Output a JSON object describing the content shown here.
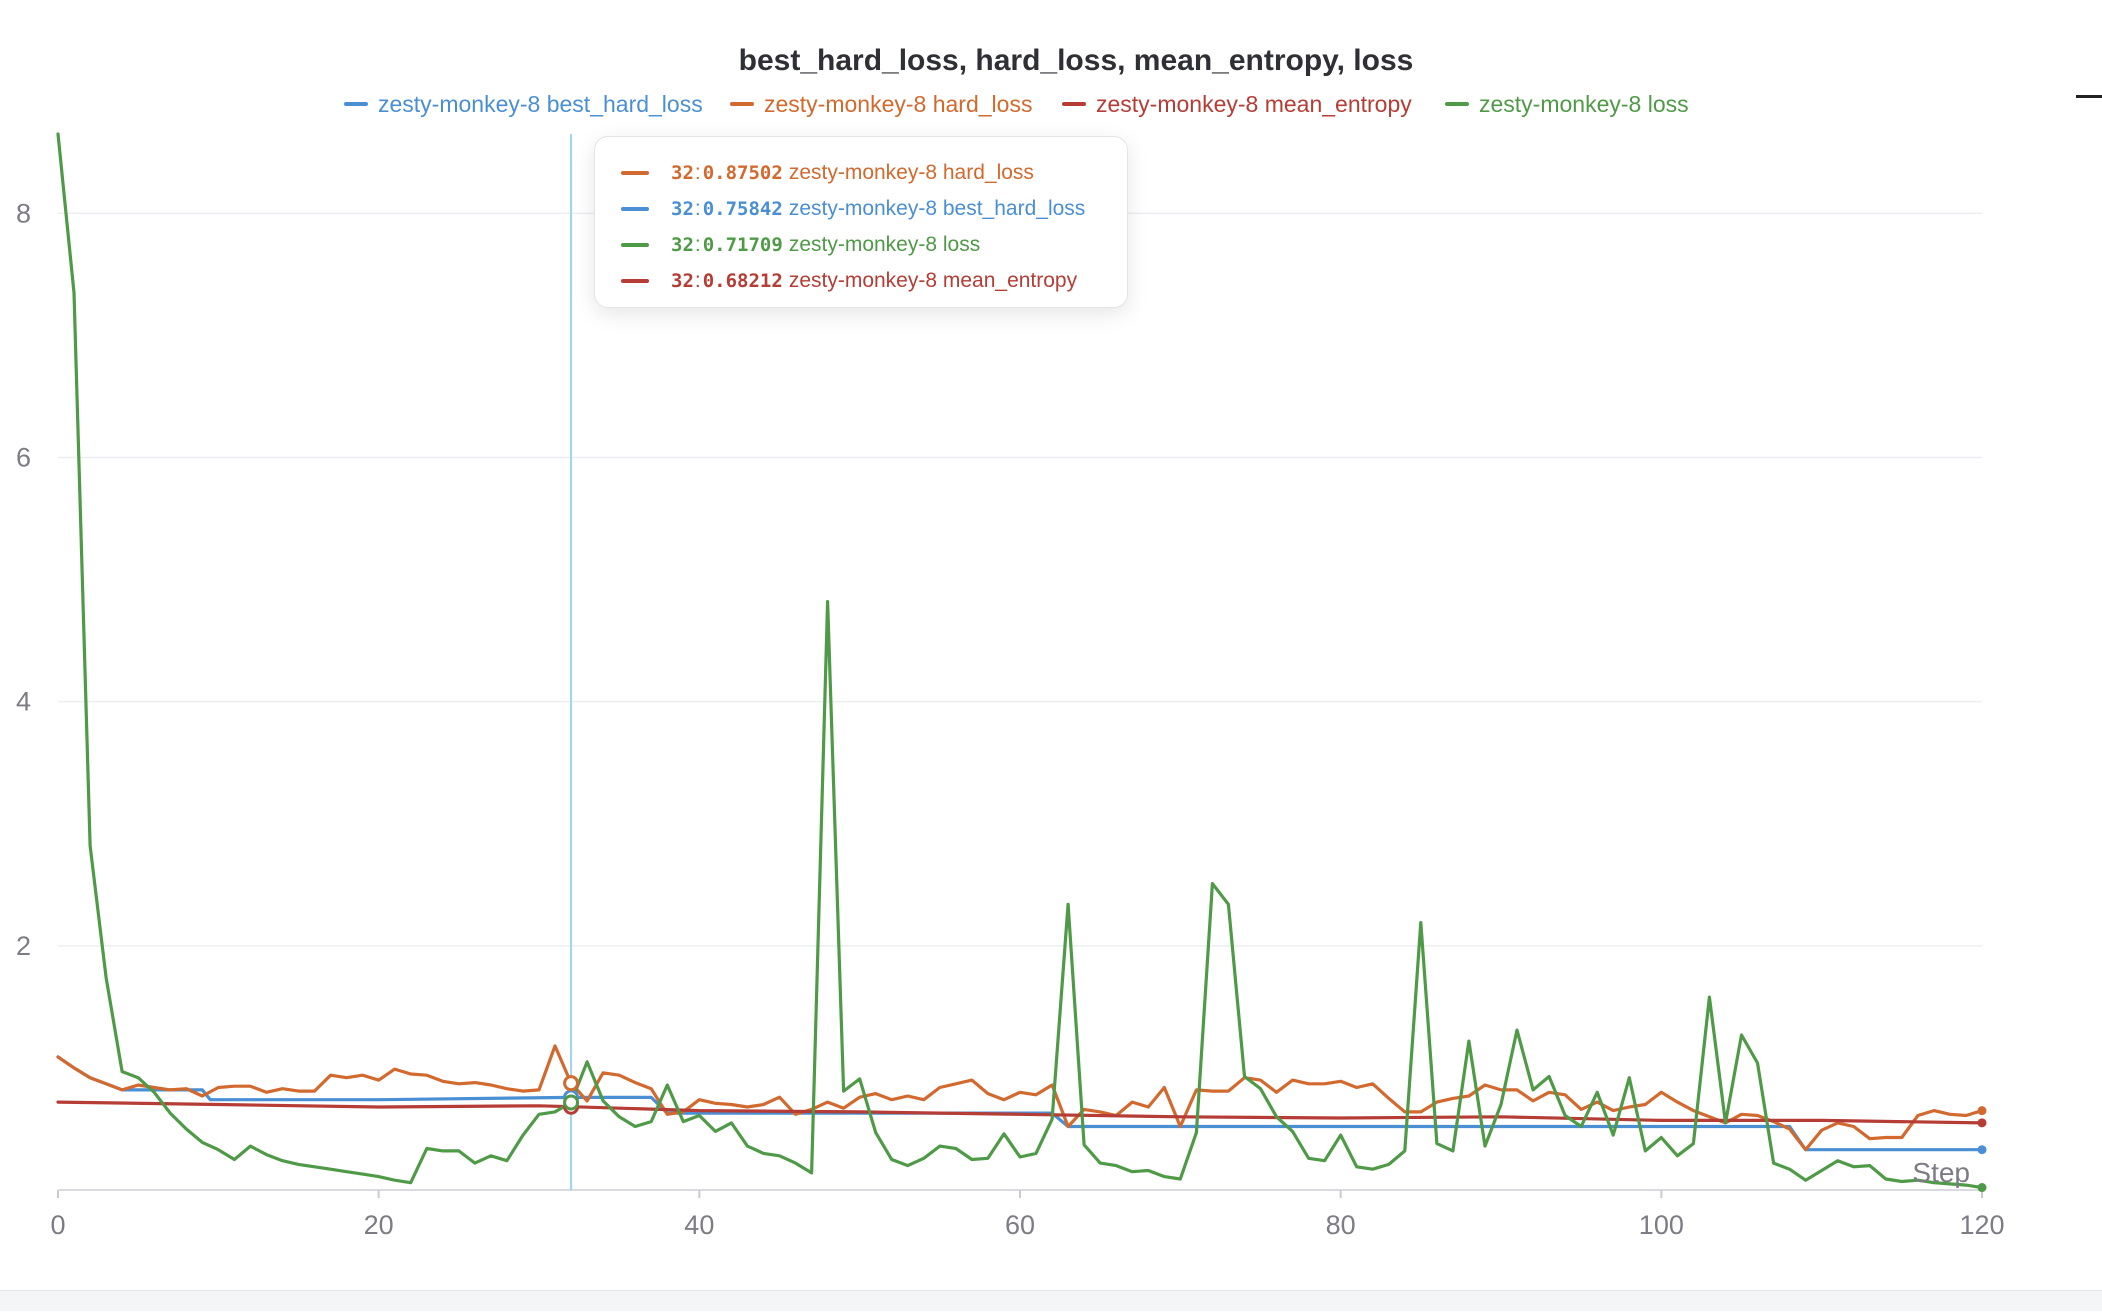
{
  "chart_data": {
    "type": "line",
    "title": "best_hard_loss, hard_loss, mean_entropy, loss",
    "xlabel": "Step",
    "ylabel": "",
    "xlim": [
      0,
      120
    ],
    "ylim": [
      0,
      8.65
    ],
    "x_ticks": [
      0,
      20,
      40,
      60,
      80,
      100,
      120
    ],
    "y_ticks": [
      2,
      4,
      6,
      8
    ],
    "grid": true,
    "legend_position": "top",
    "hover_step": 32,
    "series": [
      {
        "name": "zesty-monkey-8 best_hard_loss",
        "color": "#4a8fd4",
        "points": [
          [
            0,
            1.09
          ],
          [
            1,
            1.0
          ],
          [
            2,
            0.92
          ],
          [
            3,
            0.87
          ],
          [
            4,
            0.82
          ],
          [
            9,
            0.82
          ],
          [
            9.5,
            0.74
          ],
          [
            20,
            0.74
          ],
          [
            32,
            0.75842
          ],
          [
            37,
            0.75842
          ],
          [
            38,
            0.63
          ],
          [
            62,
            0.63
          ],
          [
            63,
            0.52
          ],
          [
            108,
            0.52
          ],
          [
            109,
            0.33
          ],
          [
            120,
            0.33
          ]
        ]
      },
      {
        "name": "zesty-monkey-8 hard_loss",
        "color": "#d2692e",
        "points": [
          [
            0,
            1.09
          ],
          [
            1,
            1.0
          ],
          [
            2,
            0.92
          ],
          [
            3,
            0.87
          ],
          [
            4,
            0.82
          ],
          [
            5,
            0.86
          ],
          [
            6,
            0.84
          ],
          [
            7,
            0.82
          ],
          [
            8,
            0.83
          ],
          [
            9,
            0.77
          ],
          [
            10,
            0.84
          ],
          [
            11,
            0.85
          ],
          [
            12,
            0.85
          ],
          [
            13,
            0.8
          ],
          [
            14,
            0.83
          ],
          [
            15,
            0.81
          ],
          [
            16,
            0.81
          ],
          [
            17,
            0.94
          ],
          [
            18,
            0.92
          ],
          [
            19,
            0.94
          ],
          [
            20,
            0.9
          ],
          [
            21,
            0.99
          ],
          [
            22,
            0.95
          ],
          [
            23,
            0.94
          ],
          [
            24,
            0.89
          ],
          [
            25,
            0.87
          ],
          [
            26,
            0.88
          ],
          [
            27,
            0.86
          ],
          [
            28,
            0.83
          ],
          [
            29,
            0.81
          ],
          [
            30,
            0.82
          ],
          [
            31,
            1.18
          ],
          [
            32,
            0.87502
          ],
          [
            33,
            0.73
          ],
          [
            34,
            0.96
          ],
          [
            35,
            0.94
          ],
          [
            36,
            0.88
          ],
          [
            37,
            0.83
          ],
          [
            38,
            0.62
          ],
          [
            39,
            0.64
          ],
          [
            40,
            0.74
          ],
          [
            41,
            0.71
          ],
          [
            42,
            0.7
          ],
          [
            43,
            0.68
          ],
          [
            44,
            0.7
          ],
          [
            45,
            0.76
          ],
          [
            46,
            0.62
          ],
          [
            47,
            0.66
          ],
          [
            48,
            0.72
          ],
          [
            49,
            0.67
          ],
          [
            50,
            0.76
          ],
          [
            51,
            0.79
          ],
          [
            52,
            0.74
          ],
          [
            53,
            0.77
          ],
          [
            54,
            0.74
          ],
          [
            55,
            0.84
          ],
          [
            56,
            0.87
          ],
          [
            57,
            0.9
          ],
          [
            58,
            0.79
          ],
          [
            59,
            0.74
          ],
          [
            60,
            0.8
          ],
          [
            61,
            0.78
          ],
          [
            62,
            0.86
          ],
          [
            63,
            0.52
          ],
          [
            64,
            0.66
          ],
          [
            65,
            0.64
          ],
          [
            66,
            0.61
          ],
          [
            67,
            0.72
          ],
          [
            68,
            0.68
          ],
          [
            69,
            0.84
          ],
          [
            70,
            0.52
          ],
          [
            71,
            0.82
          ],
          [
            72,
            0.81
          ],
          [
            73,
            0.81
          ],
          [
            74,
            0.92
          ],
          [
            75,
            0.9
          ],
          [
            76,
            0.8
          ],
          [
            77,
            0.9
          ],
          [
            78,
            0.87
          ],
          [
            79,
            0.87
          ],
          [
            80,
            0.89
          ],
          [
            81,
            0.84
          ],
          [
            82,
            0.87
          ],
          [
            83,
            0.75
          ],
          [
            84,
            0.64
          ],
          [
            85,
            0.64
          ],
          [
            86,
            0.72
          ],
          [
            87,
            0.75
          ],
          [
            88,
            0.77
          ],
          [
            89,
            0.86
          ],
          [
            90,
            0.82
          ],
          [
            91,
            0.82
          ],
          [
            92,
            0.73
          ],
          [
            93,
            0.8
          ],
          [
            94,
            0.78
          ],
          [
            95,
            0.66
          ],
          [
            96,
            0.72
          ],
          [
            97,
            0.65
          ],
          [
            98,
            0.68
          ],
          [
            99,
            0.7
          ],
          [
            100,
            0.8
          ],
          [
            101,
            0.72
          ],
          [
            102,
            0.65
          ],
          [
            103,
            0.6
          ],
          [
            104,
            0.55
          ],
          [
            105,
            0.62
          ],
          [
            106,
            0.61
          ],
          [
            107,
            0.56
          ],
          [
            108,
            0.5
          ],
          [
            109,
            0.33
          ],
          [
            110,
            0.49
          ],
          [
            111,
            0.55
          ],
          [
            112,
            0.52
          ],
          [
            113,
            0.42
          ],
          [
            114,
            0.43
          ],
          [
            115,
            0.43
          ],
          [
            116,
            0.61
          ],
          [
            117,
            0.65
          ],
          [
            118,
            0.62
          ],
          [
            119,
            0.61
          ],
          [
            120,
            0.65
          ]
        ]
      },
      {
        "name": "zesty-monkey-8 mean_entropy",
        "color": "#b53d35",
        "points": [
          [
            0,
            0.72
          ],
          [
            10,
            0.7
          ],
          [
            20,
            0.68
          ],
          [
            30,
            0.69
          ],
          [
            32,
            0.68212
          ],
          [
            40,
            0.65
          ],
          [
            50,
            0.64
          ],
          [
            60,
            0.62
          ],
          [
            70,
            0.6
          ],
          [
            80,
            0.59
          ],
          [
            90,
            0.6
          ],
          [
            100,
            0.57
          ],
          [
            110,
            0.57
          ],
          [
            120,
            0.55
          ]
        ]
      },
      {
        "name": "zesty-monkey-8 loss",
        "color": "#4f9a47",
        "points": [
          [
            0,
            8.65
          ],
          [
            1,
            7.35
          ],
          [
            2,
            2.82
          ],
          [
            3,
            1.74
          ],
          [
            4,
            0.97
          ],
          [
            5,
            0.92
          ],
          [
            6,
            0.8
          ],
          [
            7,
            0.63
          ],
          [
            8,
            0.5
          ],
          [
            9,
            0.39
          ],
          [
            10,
            0.33
          ],
          [
            11,
            0.25
          ],
          [
            12,
            0.36
          ],
          [
            13,
            0.29
          ],
          [
            14,
            0.24
          ],
          [
            15,
            0.21
          ],
          [
            16,
            0.19
          ],
          [
            17,
            0.17
          ],
          [
            18,
            0.15
          ],
          [
            19,
            0.13
          ],
          [
            20,
            0.11
          ],
          [
            21,
            0.08
          ],
          [
            22,
            0.06
          ],
          [
            23,
            0.34
          ],
          [
            24,
            0.32
          ],
          [
            25,
            0.32
          ],
          [
            26,
            0.22
          ],
          [
            27,
            0.28
          ],
          [
            28,
            0.24
          ],
          [
            29,
            0.45
          ],
          [
            30,
            0.62
          ],
          [
            31,
            0.64
          ],
          [
            32,
            0.71709
          ],
          [
            33,
            1.05
          ],
          [
            34,
            0.73
          ],
          [
            35,
            0.6
          ],
          [
            36,
            0.52
          ],
          [
            37,
            0.56
          ],
          [
            38,
            0.86
          ],
          [
            39,
            0.56
          ],
          [
            40,
            0.61
          ],
          [
            41,
            0.48
          ],
          [
            42,
            0.55
          ],
          [
            43,
            0.36
          ],
          [
            44,
            0.3
          ],
          [
            45,
            0.28
          ],
          [
            46,
            0.22
          ],
          [
            47,
            0.14
          ],
          [
            48,
            4.82
          ],
          [
            49,
            0.81
          ],
          [
            50,
            0.91
          ],
          [
            51,
            0.47
          ],
          [
            52,
            0.25
          ],
          [
            53,
            0.2
          ],
          [
            54,
            0.26
          ],
          [
            55,
            0.36
          ],
          [
            56,
            0.34
          ],
          [
            57,
            0.25
          ],
          [
            58,
            0.26
          ],
          [
            59,
            0.46
          ],
          [
            60,
            0.27
          ],
          [
            61,
            0.3
          ],
          [
            62,
            0.58
          ],
          [
            63,
            2.34
          ],
          [
            64,
            0.37
          ],
          [
            65,
            0.22
          ],
          [
            66,
            0.2
          ],
          [
            67,
            0.15
          ],
          [
            68,
            0.16
          ],
          [
            69,
            0.11
          ],
          [
            70,
            0.09
          ],
          [
            71,
            0.47
          ],
          [
            72,
            2.51
          ],
          [
            73,
            2.34
          ],
          [
            74,
            0.93
          ],
          [
            75,
            0.83
          ],
          [
            76,
            0.6
          ],
          [
            77,
            0.48
          ],
          [
            78,
            0.26
          ],
          [
            79,
            0.24
          ],
          [
            80,
            0.45
          ],
          [
            81,
            0.19
          ],
          [
            82,
            0.17
          ],
          [
            83,
            0.21
          ],
          [
            84,
            0.32
          ],
          [
            85,
            2.19
          ],
          [
            86,
            0.38
          ],
          [
            87,
            0.32
          ],
          [
            88,
            1.22
          ],
          [
            89,
            0.36
          ],
          [
            90,
            0.7
          ],
          [
            91,
            1.31
          ],
          [
            92,
            0.82
          ],
          [
            93,
            0.93
          ],
          [
            94,
            0.61
          ],
          [
            95,
            0.52
          ],
          [
            96,
            0.8
          ],
          [
            97,
            0.45
          ],
          [
            98,
            0.92
          ],
          [
            99,
            0.32
          ],
          [
            100,
            0.43
          ],
          [
            101,
            0.28
          ],
          [
            102,
            0.38
          ],
          [
            103,
            1.58
          ],
          [
            104,
            0.55
          ],
          [
            105,
            1.27
          ],
          [
            106,
            1.04
          ],
          [
            107,
            0.22
          ],
          [
            108,
            0.17
          ],
          [
            109,
            0.08
          ],
          [
            110,
            0.16
          ],
          [
            111,
            0.24
          ],
          [
            112,
            0.19
          ],
          [
            113,
            0.2
          ],
          [
            114,
            0.09
          ],
          [
            115,
            0.07
          ],
          [
            116,
            0.08
          ],
          [
            117,
            0.06
          ],
          [
            118,
            0.05
          ],
          [
            119,
            0.04
          ],
          [
            120,
            0.02
          ]
        ]
      }
    ],
    "tooltip": [
      {
        "step": "32",
        "value": "0.87502",
        "name": "zesty-monkey-8 hard_loss",
        "color": "#d2692e"
      },
      {
        "step": "32",
        "value": "0.75842",
        "name": "zesty-monkey-8 best_hard_loss",
        "color": "#4a8fd4"
      },
      {
        "step": "32",
        "value": "0.71709",
        "name": "zesty-monkey-8 loss",
        "color": "#4f9a47"
      },
      {
        "step": "32",
        "value": "0.68212",
        "name": "zesty-monkey-8 mean_entropy",
        "color": "#b53d35"
      }
    ]
  }
}
